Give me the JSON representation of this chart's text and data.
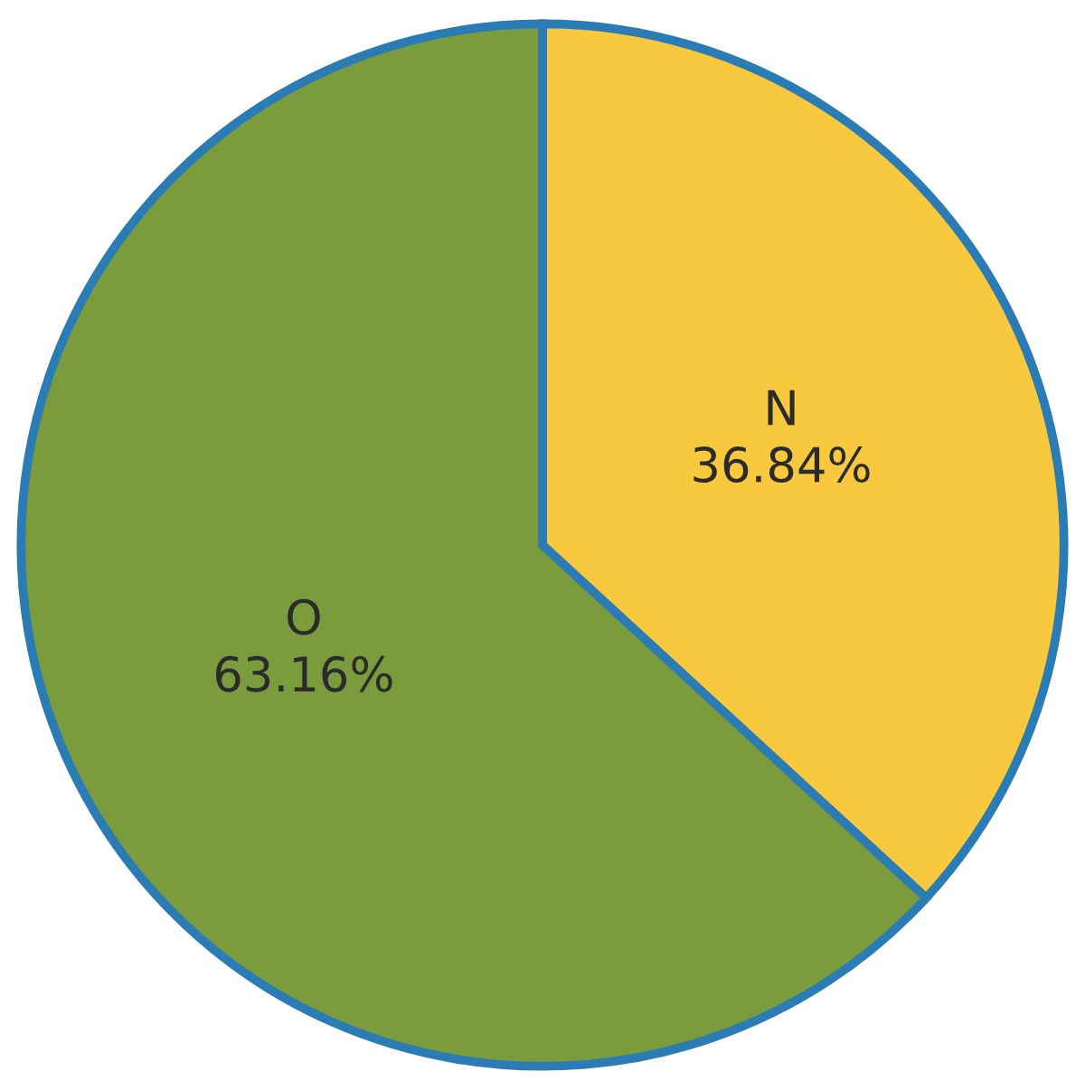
{
  "chart_data": {
    "type": "pie",
    "categories": [
      "N",
      "O"
    ],
    "values": [
      36.84,
      63.16
    ],
    "value_labels": [
      "36.84%",
      "63.16%"
    ],
    "colors": [
      "#f8c93e",
      "#7b9c3c"
    ],
    "legend": false
  }
}
